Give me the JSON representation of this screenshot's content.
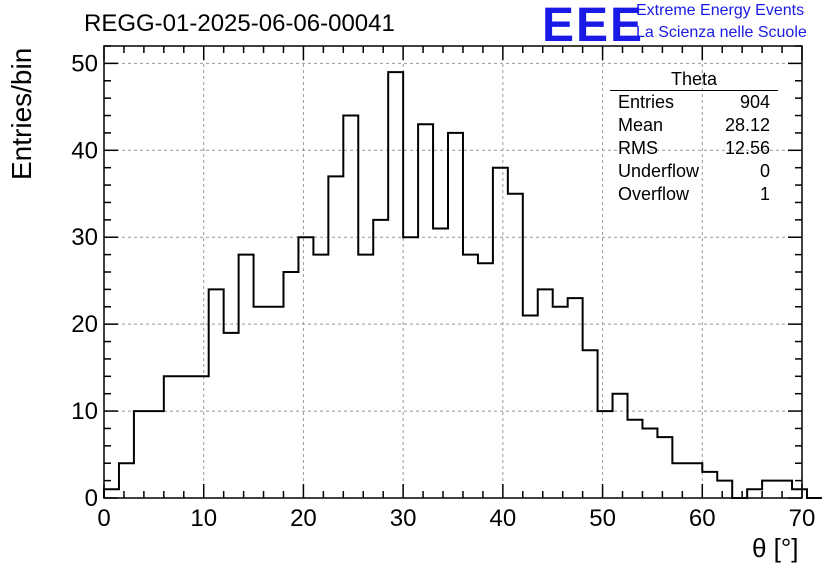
{
  "run_title": "REGG-01-2025-06-06-00041",
  "logo": {
    "text": "EEE",
    "line1": "Extreme Energy Events",
    "line2": "La Scienza nelle Scuole",
    "color": "#1a1ae6"
  },
  "stats": {
    "title": "Theta",
    "rows": [
      {
        "label": "Entries",
        "value": "904"
      },
      {
        "label": "Mean",
        "value": "28.12"
      },
      {
        "label": "RMS",
        "value": "12.56"
      },
      {
        "label": "Underflow",
        "value": "0"
      },
      {
        "label": "Overflow",
        "value": "1"
      }
    ]
  },
  "chart_data": {
    "type": "bar",
    "histogram": true,
    "title": "REGG-01-2025-06-06-00041",
    "xlabel": "θ [°]",
    "ylabel": "Entries/bin",
    "xlim": [
      0,
      70
    ],
    "ylim": [
      0,
      52
    ],
    "x_ticks": [
      0,
      10,
      20,
      30,
      40,
      50,
      60,
      70
    ],
    "y_ticks": [
      0,
      10,
      20,
      30,
      40,
      50
    ],
    "grid": true,
    "bin_width": 1.5,
    "bin_edges_start": 0,
    "values": [
      1,
      4,
      10,
      10,
      14,
      14,
      14,
      24,
      19,
      28,
      22,
      22,
      26,
      30,
      28,
      37,
      44,
      28,
      32,
      49,
      30,
      43,
      31,
      42,
      28,
      27,
      38,
      35,
      21,
      24,
      22,
      23,
      17,
      10,
      12,
      9,
      8,
      7,
      4,
      4,
      3,
      2,
      0,
      1,
      2,
      2,
      1,
      0
    ]
  }
}
